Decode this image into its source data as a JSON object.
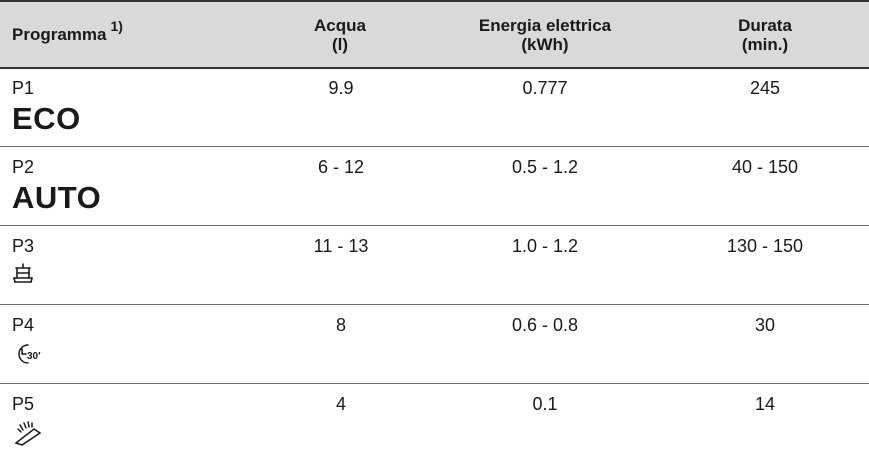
{
  "table": {
    "headers": {
      "programma": "Programma",
      "programma_note": "1)",
      "acqua": [
        "Acqua",
        "(l)"
      ],
      "energia": [
        "Energia elettrica",
        "(kWh)"
      ],
      "durata": [
        "Durata",
        "(min.)"
      ]
    },
    "rows": [
      {
        "code": "P1",
        "label": "ECO",
        "icon": "",
        "acqua": "9.9",
        "energia": "0.777",
        "durata": "245"
      },
      {
        "code": "P2",
        "label": "AUTO",
        "icon": "",
        "acqua": "6 - 12",
        "energia": "0.5 - 1.2",
        "durata": "40 - 150"
      },
      {
        "code": "P3",
        "label": "",
        "icon": "stacked-dishes-icon",
        "acqua": "11 - 13",
        "energia": "1.0 - 1.2",
        "durata": "130 - 150"
      },
      {
        "code": "P4",
        "label": "",
        "icon": "30-minute-clock-icon",
        "icon_text": "30′",
        "acqua": "8",
        "energia": "0.6 - 0.8",
        "durata": "30"
      },
      {
        "code": "P5",
        "label": "",
        "icon": "spray-rinse-icon",
        "acqua": "4",
        "energia": "0.1",
        "durata": "14"
      }
    ]
  }
}
